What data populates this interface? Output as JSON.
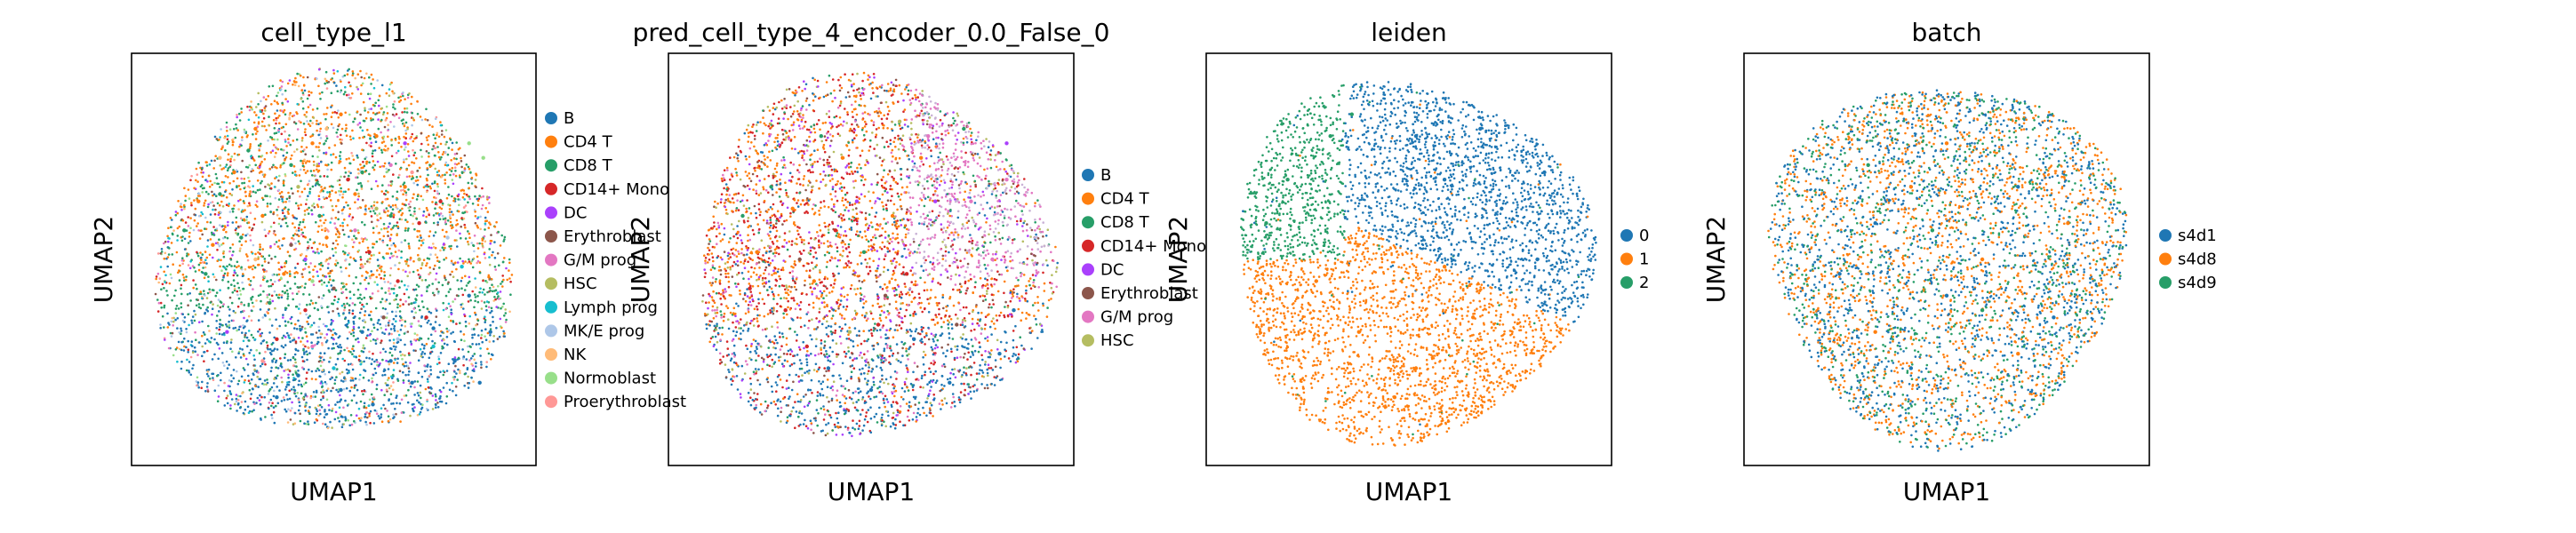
{
  "chart_data": [
    {
      "type": "scatter",
      "title": "cell_type_l1",
      "xlabel": "UMAP1",
      "ylabel": "UMAP2",
      "grid": false,
      "legend_placement": "right",
      "series": [
        {
          "name": "B",
          "color": "#1f77b4"
        },
        {
          "name": "CD4 T",
          "color": "#ff7f0e"
        },
        {
          "name": "CD8 T",
          "color": "#279e68"
        },
        {
          "name": "CD14+ Mono",
          "color": "#d62728"
        },
        {
          "name": "DC",
          "color": "#aa40fc"
        },
        {
          "name": "Erythroblast",
          "color": "#8c564b"
        },
        {
          "name": "G/M prog",
          "color": "#e377c2"
        },
        {
          "name": "HSC",
          "color": "#b5bd61"
        },
        {
          "name": "Lymph prog",
          "color": "#17becf"
        },
        {
          "name": "MK/E prog",
          "color": "#aec7e8"
        },
        {
          "name": "NK",
          "color": "#ffbb78"
        },
        {
          "name": "Normoblast",
          "color": "#98df8a"
        },
        {
          "name": "Proerythroblast",
          "color": "#ff9896"
        }
      ],
      "points": {
        "B": [
          [
            8.4,
            2.2
          ],
          [
            9.1,
            1.6
          ],
          [
            7.8,
            3.1
          ],
          [
            5.2,
            1.4
          ],
          [
            6.1,
            1.0
          ],
          [
            4.0,
            1.8
          ],
          [
            8.8,
            4.0
          ],
          [
            3.4,
            1.2
          ],
          [
            7.2,
            1.6
          ],
          [
            9.4,
            3.0
          ],
          [
            6.6,
            2.2
          ],
          [
            5.8,
            3.0
          ]
        ],
        "CD4 T": [
          [
            3.0,
            6.2
          ],
          [
            2.2,
            7.4
          ],
          [
            4.4,
            8.2
          ],
          [
            5.6,
            6.8
          ],
          [
            1.6,
            5.4
          ],
          [
            3.6,
            4.6
          ],
          [
            6.2,
            8.4
          ],
          [
            2.8,
            8.6
          ],
          [
            4.8,
            5.6
          ],
          [
            7.0,
            7.0
          ],
          [
            1.2,
            6.6
          ],
          [
            5.2,
            9.0
          ]
        ],
        "CD8 T": [
          [
            2.4,
            5.6
          ],
          [
            1.8,
            6.8
          ],
          [
            3.8,
            7.6
          ],
          [
            4.6,
            6.2
          ],
          [
            0.8,
            5.8
          ],
          [
            2.6,
            8.0
          ],
          [
            5.8,
            7.4
          ],
          [
            3.2,
            3.8
          ],
          [
            1.4,
            4.6
          ],
          [
            6.6,
            6.2
          ]
        ],
        "CD14+ Mono": [
          [
            6.0,
            5.2
          ],
          [
            7.4,
            6.0
          ],
          [
            5.4,
            7.2
          ],
          [
            6.8,
            4.4
          ],
          [
            4.2,
            3.6
          ],
          [
            8.0,
            6.6
          ],
          [
            3.4,
            2.8
          ],
          [
            7.6,
            3.4
          ]
        ],
        "DC": [
          [
            4.2,
            5.0
          ],
          [
            7.0,
            8.2
          ],
          [
            2.0,
            3.0
          ]
        ],
        "Erythroblast": [
          [
            5.0,
            4.2
          ],
          [
            6.4,
            3.4
          ],
          [
            3.8,
            5.4
          ]
        ],
        "G/M prog": [
          [
            5.6,
            5.8
          ],
          [
            6.6,
            7.6
          ],
          [
            4.4,
            2.6
          ]
        ],
        "HSC": [
          [
            6.2,
            6.4
          ],
          [
            4.0,
            7.0
          ],
          [
            7.4,
            5.0
          ]
        ],
        "Lymph prog": [
          [
            7.8,
            2.6
          ],
          [
            5.0,
            2.0
          ],
          [
            8.6,
            4.8
          ]
        ],
        "MK/E prog": [
          [
            8.2,
            5.6
          ],
          [
            6.8,
            2.8
          ]
        ],
        "NK": [
          [
            2.8,
            5.0
          ],
          [
            4.8,
            8.6
          ],
          [
            1.8,
            7.8
          ]
        ],
        "Normoblast": [
          [
            8.8,
            8.2
          ],
          [
            9.2,
            7.8
          ],
          [
            4.4,
            4.4
          ]
        ],
        "Proerythroblast": [
          [
            7.2,
            7.4
          ],
          [
            5.8,
            4.8
          ],
          [
            3.0,
            2.2
          ]
        ]
      }
    },
    {
      "type": "scatter",
      "title": "pred_cell_type_4_encoder_0.0_False_0",
      "xlabel": "UMAP1",
      "ylabel": "UMAP2",
      "grid": false,
      "legend_placement": "right",
      "series": [
        {
          "name": "B",
          "color": "#1f77b4"
        },
        {
          "name": "CD4 T",
          "color": "#ff7f0e"
        },
        {
          "name": "CD8 T",
          "color": "#279e68"
        },
        {
          "name": "CD14+ Mono",
          "color": "#d62728"
        },
        {
          "name": "DC",
          "color": "#aa40fc"
        },
        {
          "name": "Erythroblast",
          "color": "#8c564b"
        },
        {
          "name": "G/M prog",
          "color": "#e377c2"
        },
        {
          "name": "HSC",
          "color": "#b5bd61"
        }
      ],
      "points": {
        "B": [
          [
            8.6,
            2.4
          ],
          [
            7.2,
            1.6
          ],
          [
            5.0,
            1.4
          ],
          [
            3.8,
            2.0
          ],
          [
            9.0,
            3.6
          ],
          [
            6.2,
            2.8
          ]
        ],
        "CD4 T": [
          [
            2.8,
            6.4
          ],
          [
            4.2,
            7.8
          ],
          [
            1.8,
            5.2
          ],
          [
            5.6,
            6.2
          ],
          [
            3.4,
            4.4
          ],
          [
            6.4,
            7.8
          ]
        ],
        "CD8 T": [
          [
            2.2,
            7.0
          ],
          [
            3.6,
            8.4
          ],
          [
            1.4,
            6.2
          ],
          [
            4.8,
            5.2
          ],
          [
            7.6,
            8.6
          ]
        ],
        "CD14+ Mono": [
          [
            4.0,
            5.8
          ],
          [
            2.6,
            3.6
          ],
          [
            5.2,
            3.2
          ],
          [
            1.6,
            4.2
          ],
          [
            6.0,
            4.6
          ],
          [
            3.2,
            2.6
          ]
        ],
        "DC": [
          [
            8.8,
            8.2
          ],
          [
            6.8,
            6.6
          ],
          [
            4.6,
            6.6
          ]
        ],
        "Erythroblast": [
          [
            5.4,
            4.0
          ],
          [
            7.4,
            3.2
          ],
          [
            3.0,
            5.0
          ]
        ],
        "G/M prog": [
          [
            7.8,
            6.6
          ],
          [
            8.4,
            5.0
          ],
          [
            6.6,
            8.4
          ],
          [
            8.8,
            7.2
          ]
        ],
        "HSC": [
          [
            5.8,
            8.8
          ],
          [
            4.4,
            3.0
          ]
        ]
      }
    },
    {
      "type": "scatter",
      "title": "leiden",
      "xlabel": "UMAP1",
      "ylabel": "UMAP2",
      "grid": false,
      "legend_placement": "right",
      "series": [
        {
          "name": "0",
          "color": "#1f77b4"
        },
        {
          "name": "1",
          "color": "#ff7f0e"
        },
        {
          "name": "2",
          "color": "#279e68"
        }
      ],
      "points": {
        "0": [
          [
            6.0,
            7.2
          ],
          [
            7.6,
            6.4
          ],
          [
            8.6,
            5.0
          ],
          [
            5.2,
            8.4
          ],
          [
            7.0,
            8.6
          ],
          [
            8.8,
            7.4
          ]
        ],
        "1": [
          [
            3.6,
            3.0
          ],
          [
            5.2,
            2.0
          ],
          [
            6.8,
            3.4
          ],
          [
            2.4,
            4.4
          ],
          [
            4.6,
            1.2
          ],
          [
            6.0,
            4.8
          ]
        ],
        "2": [
          [
            1.6,
            7.2
          ],
          [
            2.8,
            8.4
          ],
          [
            1.0,
            6.0
          ],
          [
            3.4,
            9.0
          ]
        ]
      }
    },
    {
      "type": "scatter",
      "title": "batch",
      "xlabel": "UMAP1",
      "ylabel": "UMAP2",
      "grid": false,
      "legend_placement": "right",
      "series": [
        {
          "name": "s4d1",
          "color": "#1f77b4"
        },
        {
          "name": "s4d8",
          "color": "#ff7f0e"
        },
        {
          "name": "s4d9",
          "color": "#279e68"
        }
      ],
      "points": {
        "s4d1": [
          [
            3.0,
            6.0
          ],
          [
            5.0,
            4.0
          ],
          [
            7.0,
            7.0
          ],
          [
            4.0,
            2.0
          ],
          [
            8.0,
            3.4
          ],
          [
            2.0,
            4.6
          ]
        ],
        "s4d8": [
          [
            4.0,
            7.0
          ],
          [
            6.0,
            5.0
          ],
          [
            3.0,
            3.0
          ],
          [
            7.0,
            2.4
          ],
          [
            5.0,
            8.2
          ],
          [
            8.4,
            6.0
          ]
        ],
        "s4d9": [
          [
            6.0,
            3.6
          ],
          [
            4.6,
            5.8
          ],
          [
            2.8,
            7.6
          ]
        ]
      }
    }
  ]
}
